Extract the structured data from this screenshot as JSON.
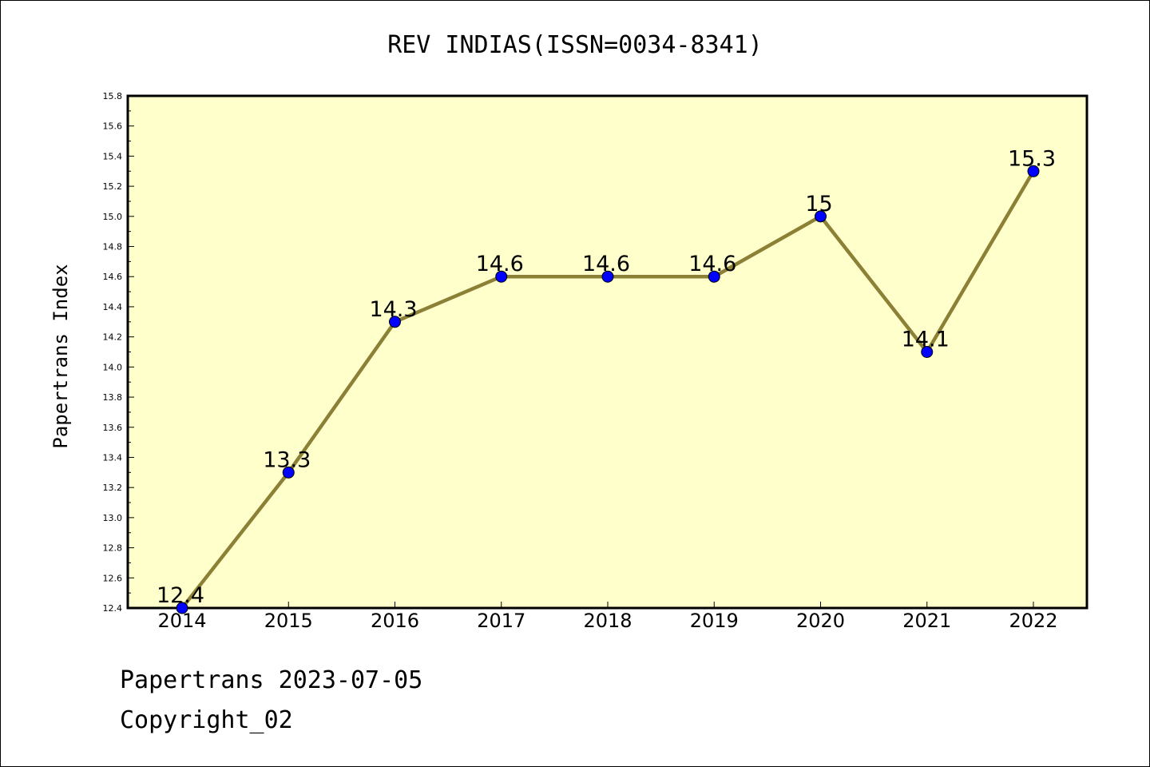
{
  "chart_data": {
    "type": "line",
    "title": "REV INDIAS(ISSN=0034-8341)",
    "ylabel": "Papertrans Index",
    "xlabel": "",
    "categories": [
      "2014",
      "2015",
      "2016",
      "2017",
      "2018",
      "2019",
      "2020",
      "2021",
      "2022"
    ],
    "series": [
      {
        "values": [
          12.4,
          13.3,
          14.3,
          14.6,
          14.6,
          14.6,
          15.0,
          14.1,
          15.3
        ]
      }
    ],
    "data_labels": [
      "12.4",
      "13.3",
      "14.3",
      "14.6",
      "14.6",
      "14.6",
      "15",
      "14.1",
      "15.3"
    ],
    "ylim": [
      12.4,
      15.8
    ],
    "yticks": [
      "12.4",
      "12.6",
      "12.8",
      "13.0",
      "13.2",
      "13.4",
      "13.6",
      "13.8",
      "14.0",
      "14.2",
      "14.4",
      "14.6",
      "14.8",
      "15.0",
      "15.2",
      "15.4",
      "15.6",
      "15.8"
    ],
    "grid": false,
    "colors": {
      "plot_background": "#ffffcc",
      "line": "#8b8036",
      "marker": "#0000ff"
    }
  },
  "footer": {
    "line1": "Papertrans 2023-07-05",
    "line2": "Copyright_02"
  }
}
